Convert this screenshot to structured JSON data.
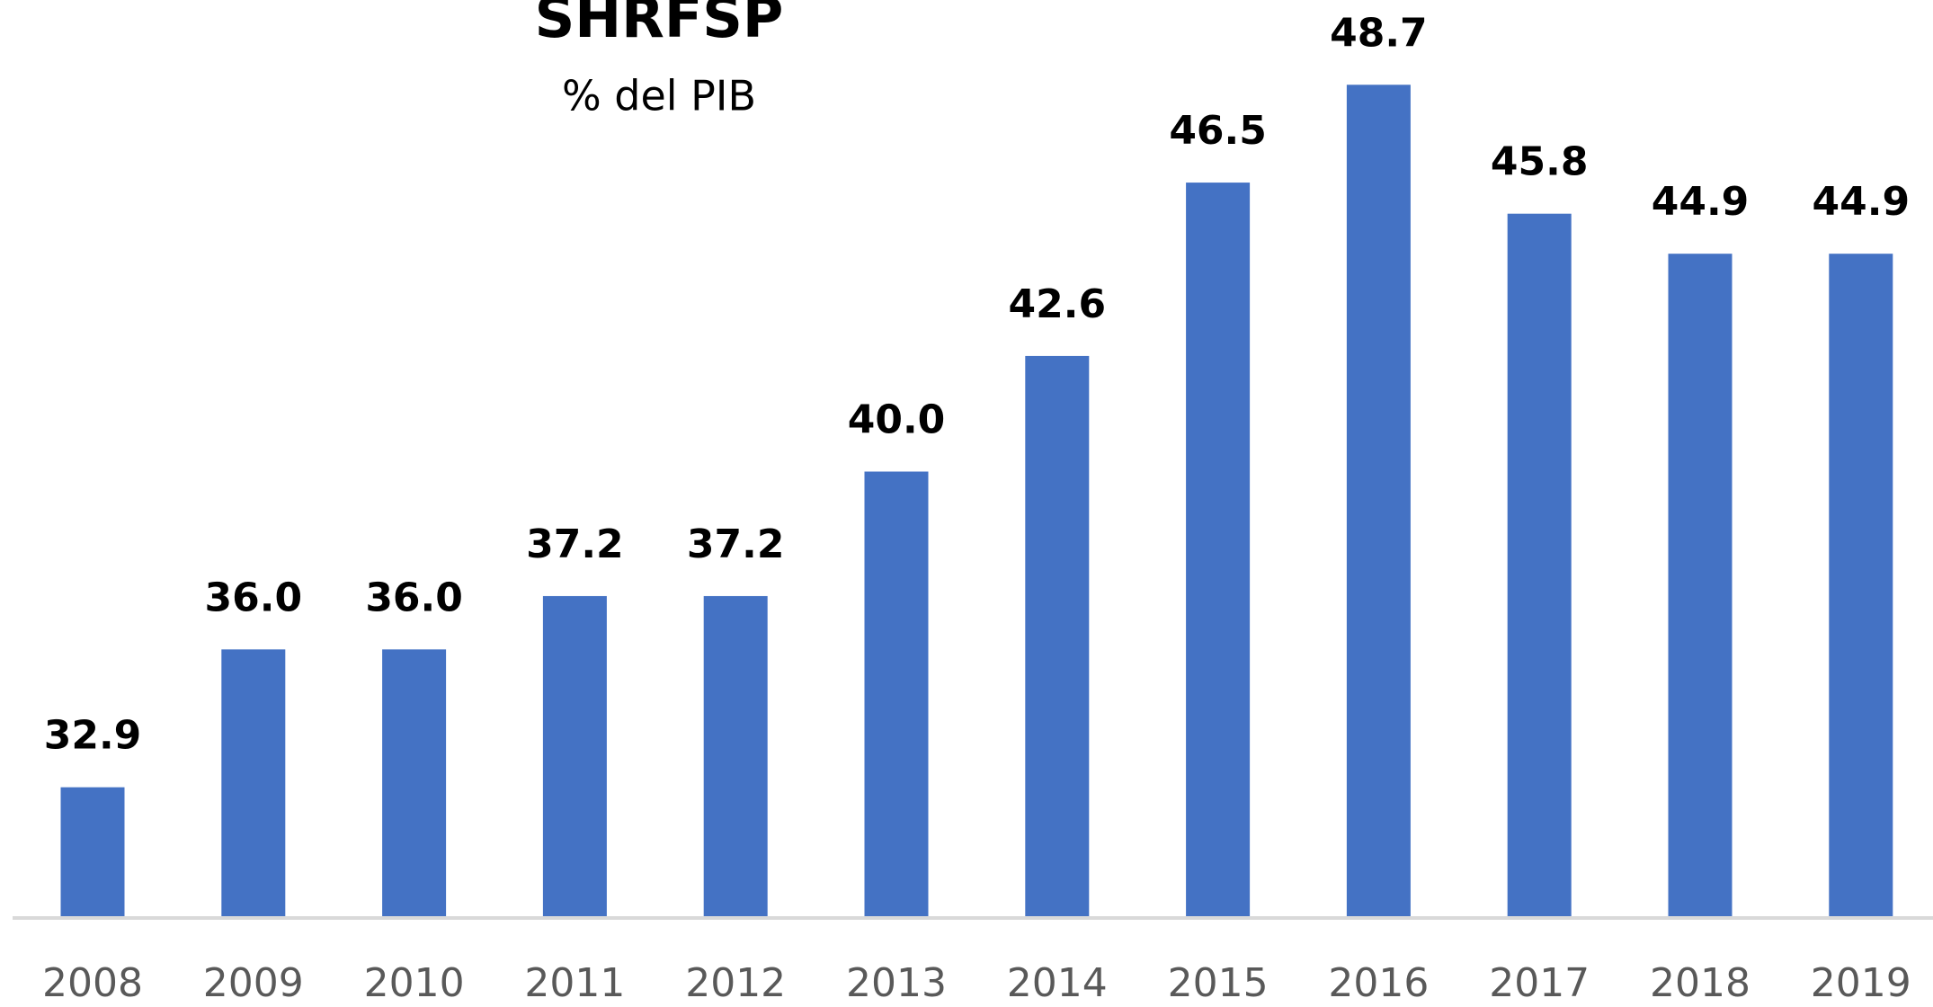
{
  "chart_data": {
    "type": "bar",
    "title": "SHRFSP",
    "subtitle": "% del PIB",
    "categories": [
      "2008",
      "2009",
      "2010",
      "2011",
      "2012",
      "2013",
      "2014",
      "2015",
      "2016",
      "2017",
      "2018",
      "2019"
    ],
    "values": [
      32.9,
      36.0,
      36.0,
      37.2,
      37.2,
      40.0,
      42.6,
      46.5,
      48.7,
      45.8,
      44.9,
      44.9
    ],
    "value_labels": [
      "32.9",
      "36.0",
      "36.0",
      "37.2",
      "37.2",
      "40.0",
      "42.6",
      "46.5",
      "48.7",
      "45.8",
      "44.9",
      "44.9"
    ],
    "color": "#4472c4",
    "ylim": [
      30,
      50
    ],
    "grid": false
  }
}
